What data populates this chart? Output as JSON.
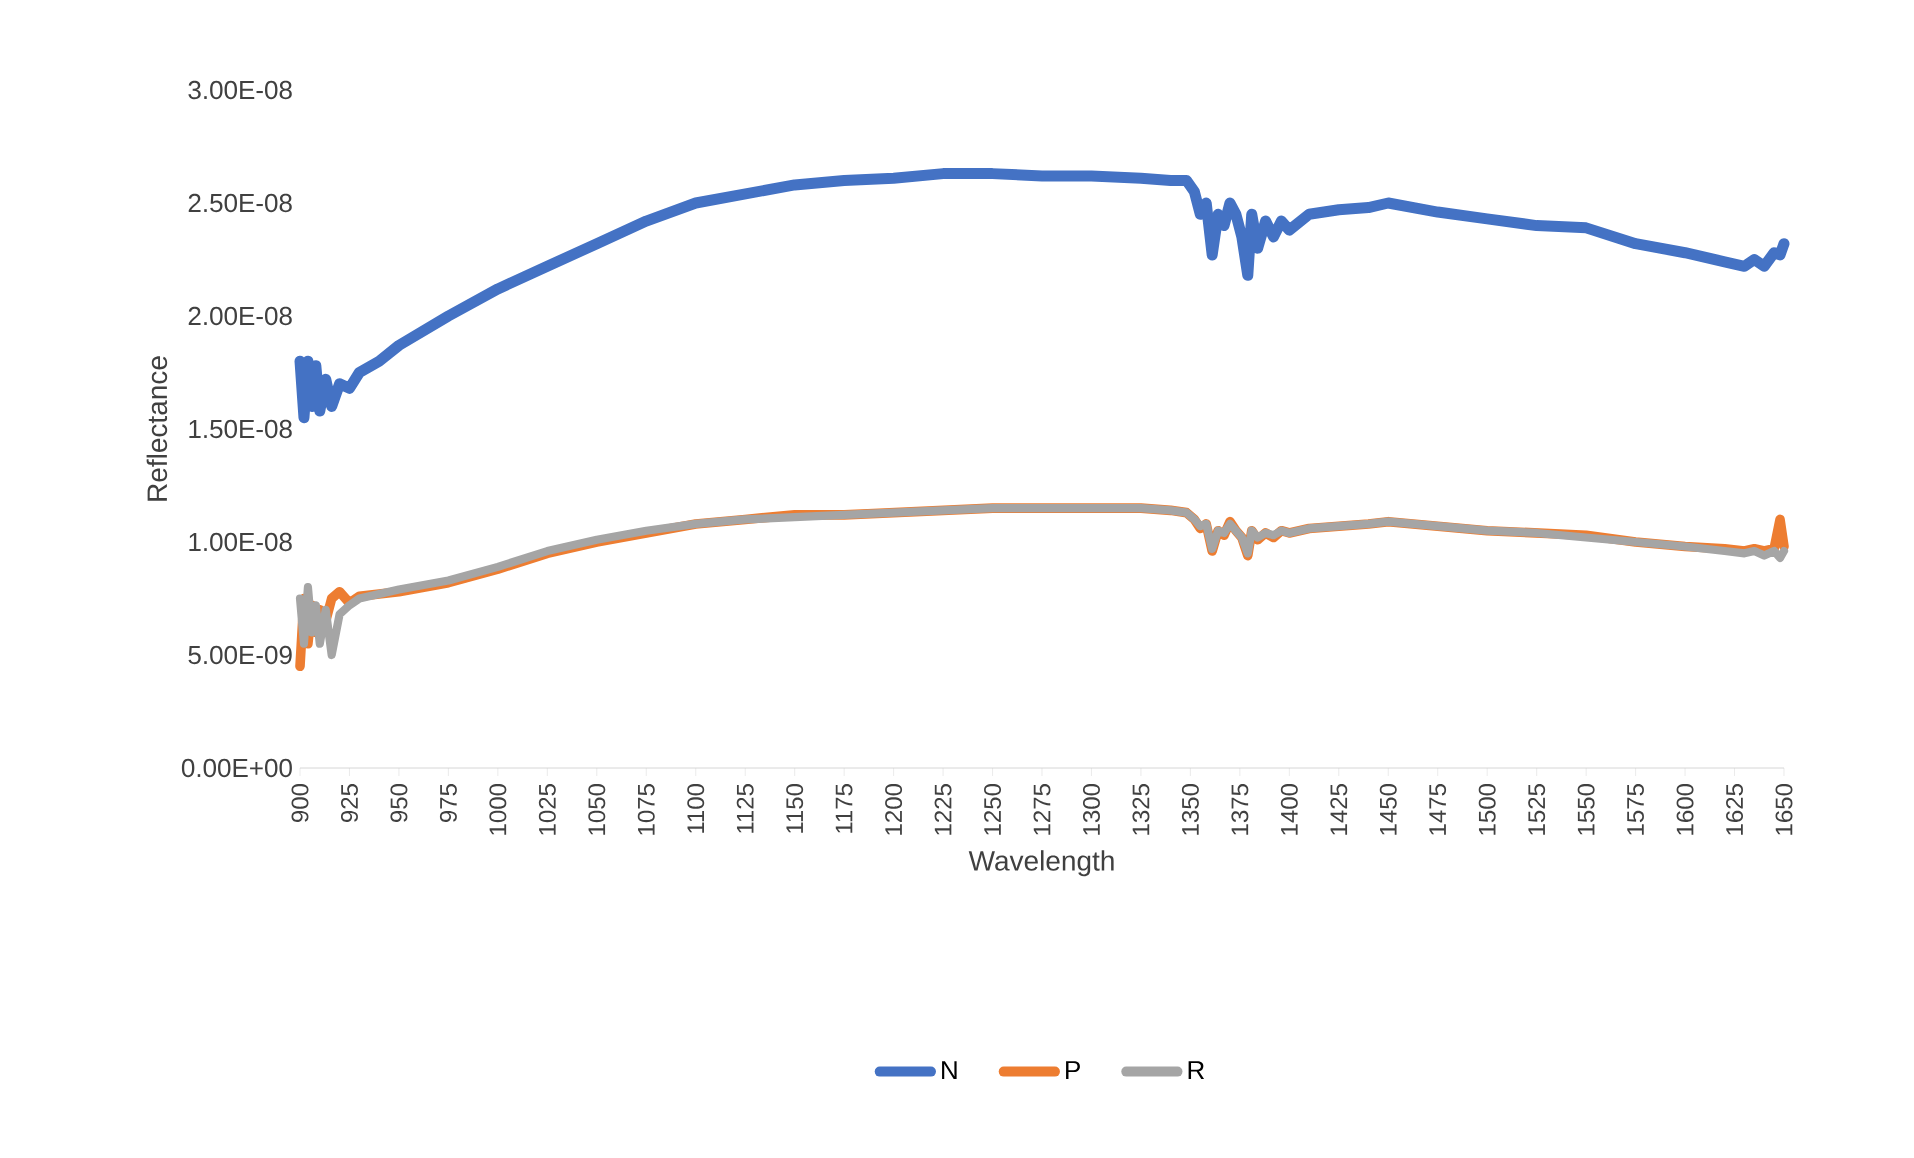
{
  "chart_data": {
    "type": "line",
    "xlabel": "Wavelength",
    "ylabel": "Reflectance",
    "xlim": [
      900,
      1650
    ],
    "xticks": [
      900,
      925,
      950,
      975,
      1000,
      1025,
      1050,
      1075,
      1100,
      1125,
      1150,
      1175,
      1200,
      1225,
      1250,
      1275,
      1300,
      1325,
      1350,
      1375,
      1400,
      1425,
      1450,
      1475,
      1500,
      1525,
      1550,
      1575,
      1600,
      1625,
      1650
    ],
    "ylim": [
      0,
      3e-08
    ],
    "yticks": [
      {
        "value": 0,
        "label": "0.00E+00"
      },
      {
        "value": 5e-09,
        "label": "5.00E-09"
      },
      {
        "value": 1e-08,
        "label": "1.00E-08"
      },
      {
        "value": 1.5e-08,
        "label": "1.50E-08"
      },
      {
        "value": 2e-08,
        "label": "2.00E-08"
      },
      {
        "value": 2.5e-08,
        "label": "2.50E-08"
      },
      {
        "value": 3e-08,
        "label": "3.00E-08"
      }
    ],
    "x": [
      900,
      902,
      904,
      906,
      908,
      910,
      913,
      916,
      920,
      925,
      930,
      940,
      950,
      975,
      1000,
      1025,
      1050,
      1075,
      1100,
      1125,
      1150,
      1175,
      1200,
      1225,
      1250,
      1275,
      1300,
      1325,
      1340,
      1348,
      1352,
      1355,
      1358,
      1361,
      1364,
      1367,
      1370,
      1373,
      1376,
      1379,
      1381,
      1384,
      1388,
      1392,
      1396,
      1400,
      1410,
      1425,
      1440,
      1450,
      1475,
      1500,
      1525,
      1550,
      1575,
      1600,
      1620,
      1630,
      1635,
      1640,
      1645,
      1648,
      1650
    ],
    "series": [
      {
        "name": "N",
        "color": "#4472c4",
        "values": [
          1.8e-08,
          1.55e-08,
          1.8e-08,
          1.6e-08,
          1.78e-08,
          1.58e-08,
          1.72e-08,
          1.6e-08,
          1.7e-08,
          1.68e-08,
          1.75e-08,
          1.8e-08,
          1.87e-08,
          2e-08,
          2.12e-08,
          2.22e-08,
          2.32e-08,
          2.42e-08,
          2.5e-08,
          2.54e-08,
          2.58e-08,
          2.6e-08,
          2.61e-08,
          2.63e-08,
          2.63e-08,
          2.62e-08,
          2.62e-08,
          2.61e-08,
          2.6e-08,
          2.6e-08,
          2.55e-08,
          2.45e-08,
          2.5e-08,
          2.27e-08,
          2.45e-08,
          2.4e-08,
          2.5e-08,
          2.45e-08,
          2.35e-08,
          2.18e-08,
          2.45e-08,
          2.3e-08,
          2.42e-08,
          2.35e-08,
          2.42e-08,
          2.38e-08,
          2.45e-08,
          2.47e-08,
          2.48e-08,
          2.5e-08,
          2.46e-08,
          2.43e-08,
          2.4e-08,
          2.39e-08,
          2.32e-08,
          2.28e-08,
          2.24e-08,
          2.22e-08,
          2.25e-08,
          2.22e-08,
          2.28e-08,
          2.27e-08,
          2.32e-08
        ]
      },
      {
        "name": "P",
        "color": "#ed7d31",
        "values": [
          4.5e-09,
          7.5e-09,
          5.5e-09,
          7.2e-09,
          6e-09,
          7e-09,
          6.5e-09,
          7.5e-09,
          7.8e-09,
          7.3e-09,
          7.6e-09,
          7.7e-09,
          7.8e-09,
          8.2e-09,
          8.8e-09,
          9.5e-09,
          1e-08,
          1.04e-08,
          1.08e-08,
          1.1e-08,
          1.12e-08,
          1.12e-08,
          1.13e-08,
          1.14e-08,
          1.15e-08,
          1.15e-08,
          1.15e-08,
          1.15e-08,
          1.14e-08,
          1.13e-08,
          1.1e-08,
          1.06e-08,
          1.08e-08,
          9.6e-09,
          1.05e-08,
          1.03e-08,
          1.09e-08,
          1.05e-08,
          1.02e-08,
          9.4e-09,
          1.05e-08,
          1.01e-08,
          1.04e-08,
          1.02e-08,
          1.05e-08,
          1.04e-08,
          1.06e-08,
          1.07e-08,
          1.08e-08,
          1.09e-08,
          1.07e-08,
          1.05e-08,
          1.04e-08,
          1.03e-08,
          1e-08,
          9.8e-09,
          9.7e-09,
          9.6e-09,
          9.7e-09,
          9.6e-09,
          9.7e-09,
          1.1e-08,
          9.8e-09
        ]
      },
      {
        "name": "R",
        "color": "#a5a5a5",
        "values": [
          7.5e-09,
          5.5e-09,
          8e-09,
          6e-09,
          7.2e-09,
          5.5e-09,
          7e-09,
          5e-09,
          6.8e-09,
          7.2e-09,
          7.5e-09,
          7.7e-09,
          7.9e-09,
          8.3e-09,
          8.9e-09,
          9.6e-09,
          1.01e-08,
          1.05e-08,
          1.08e-08,
          1.1e-08,
          1.11e-08,
          1.12e-08,
          1.13e-08,
          1.14e-08,
          1.15e-08,
          1.15e-08,
          1.15e-08,
          1.15e-08,
          1.14e-08,
          1.13e-08,
          1.1e-08,
          1.07e-08,
          1.08e-08,
          9.7e-09,
          1.05e-08,
          1.04e-08,
          1.08e-08,
          1.05e-08,
          1.02e-08,
          9.5e-09,
          1.05e-08,
          1.02e-08,
          1.04e-08,
          1.03e-08,
          1.05e-08,
          1.04e-08,
          1.06e-08,
          1.07e-08,
          1.08e-08,
          1.09e-08,
          1.07e-08,
          1.05e-08,
          1.04e-08,
          1.02e-08,
          1e-08,
          9.8e-09,
          9.6e-09,
          9.5e-09,
          9.6e-09,
          9.4e-09,
          9.6e-09,
          9.3e-09,
          9.6e-09
        ]
      }
    ],
    "legend": "bottom",
    "marker": "none",
    "line_style": "solid"
  }
}
